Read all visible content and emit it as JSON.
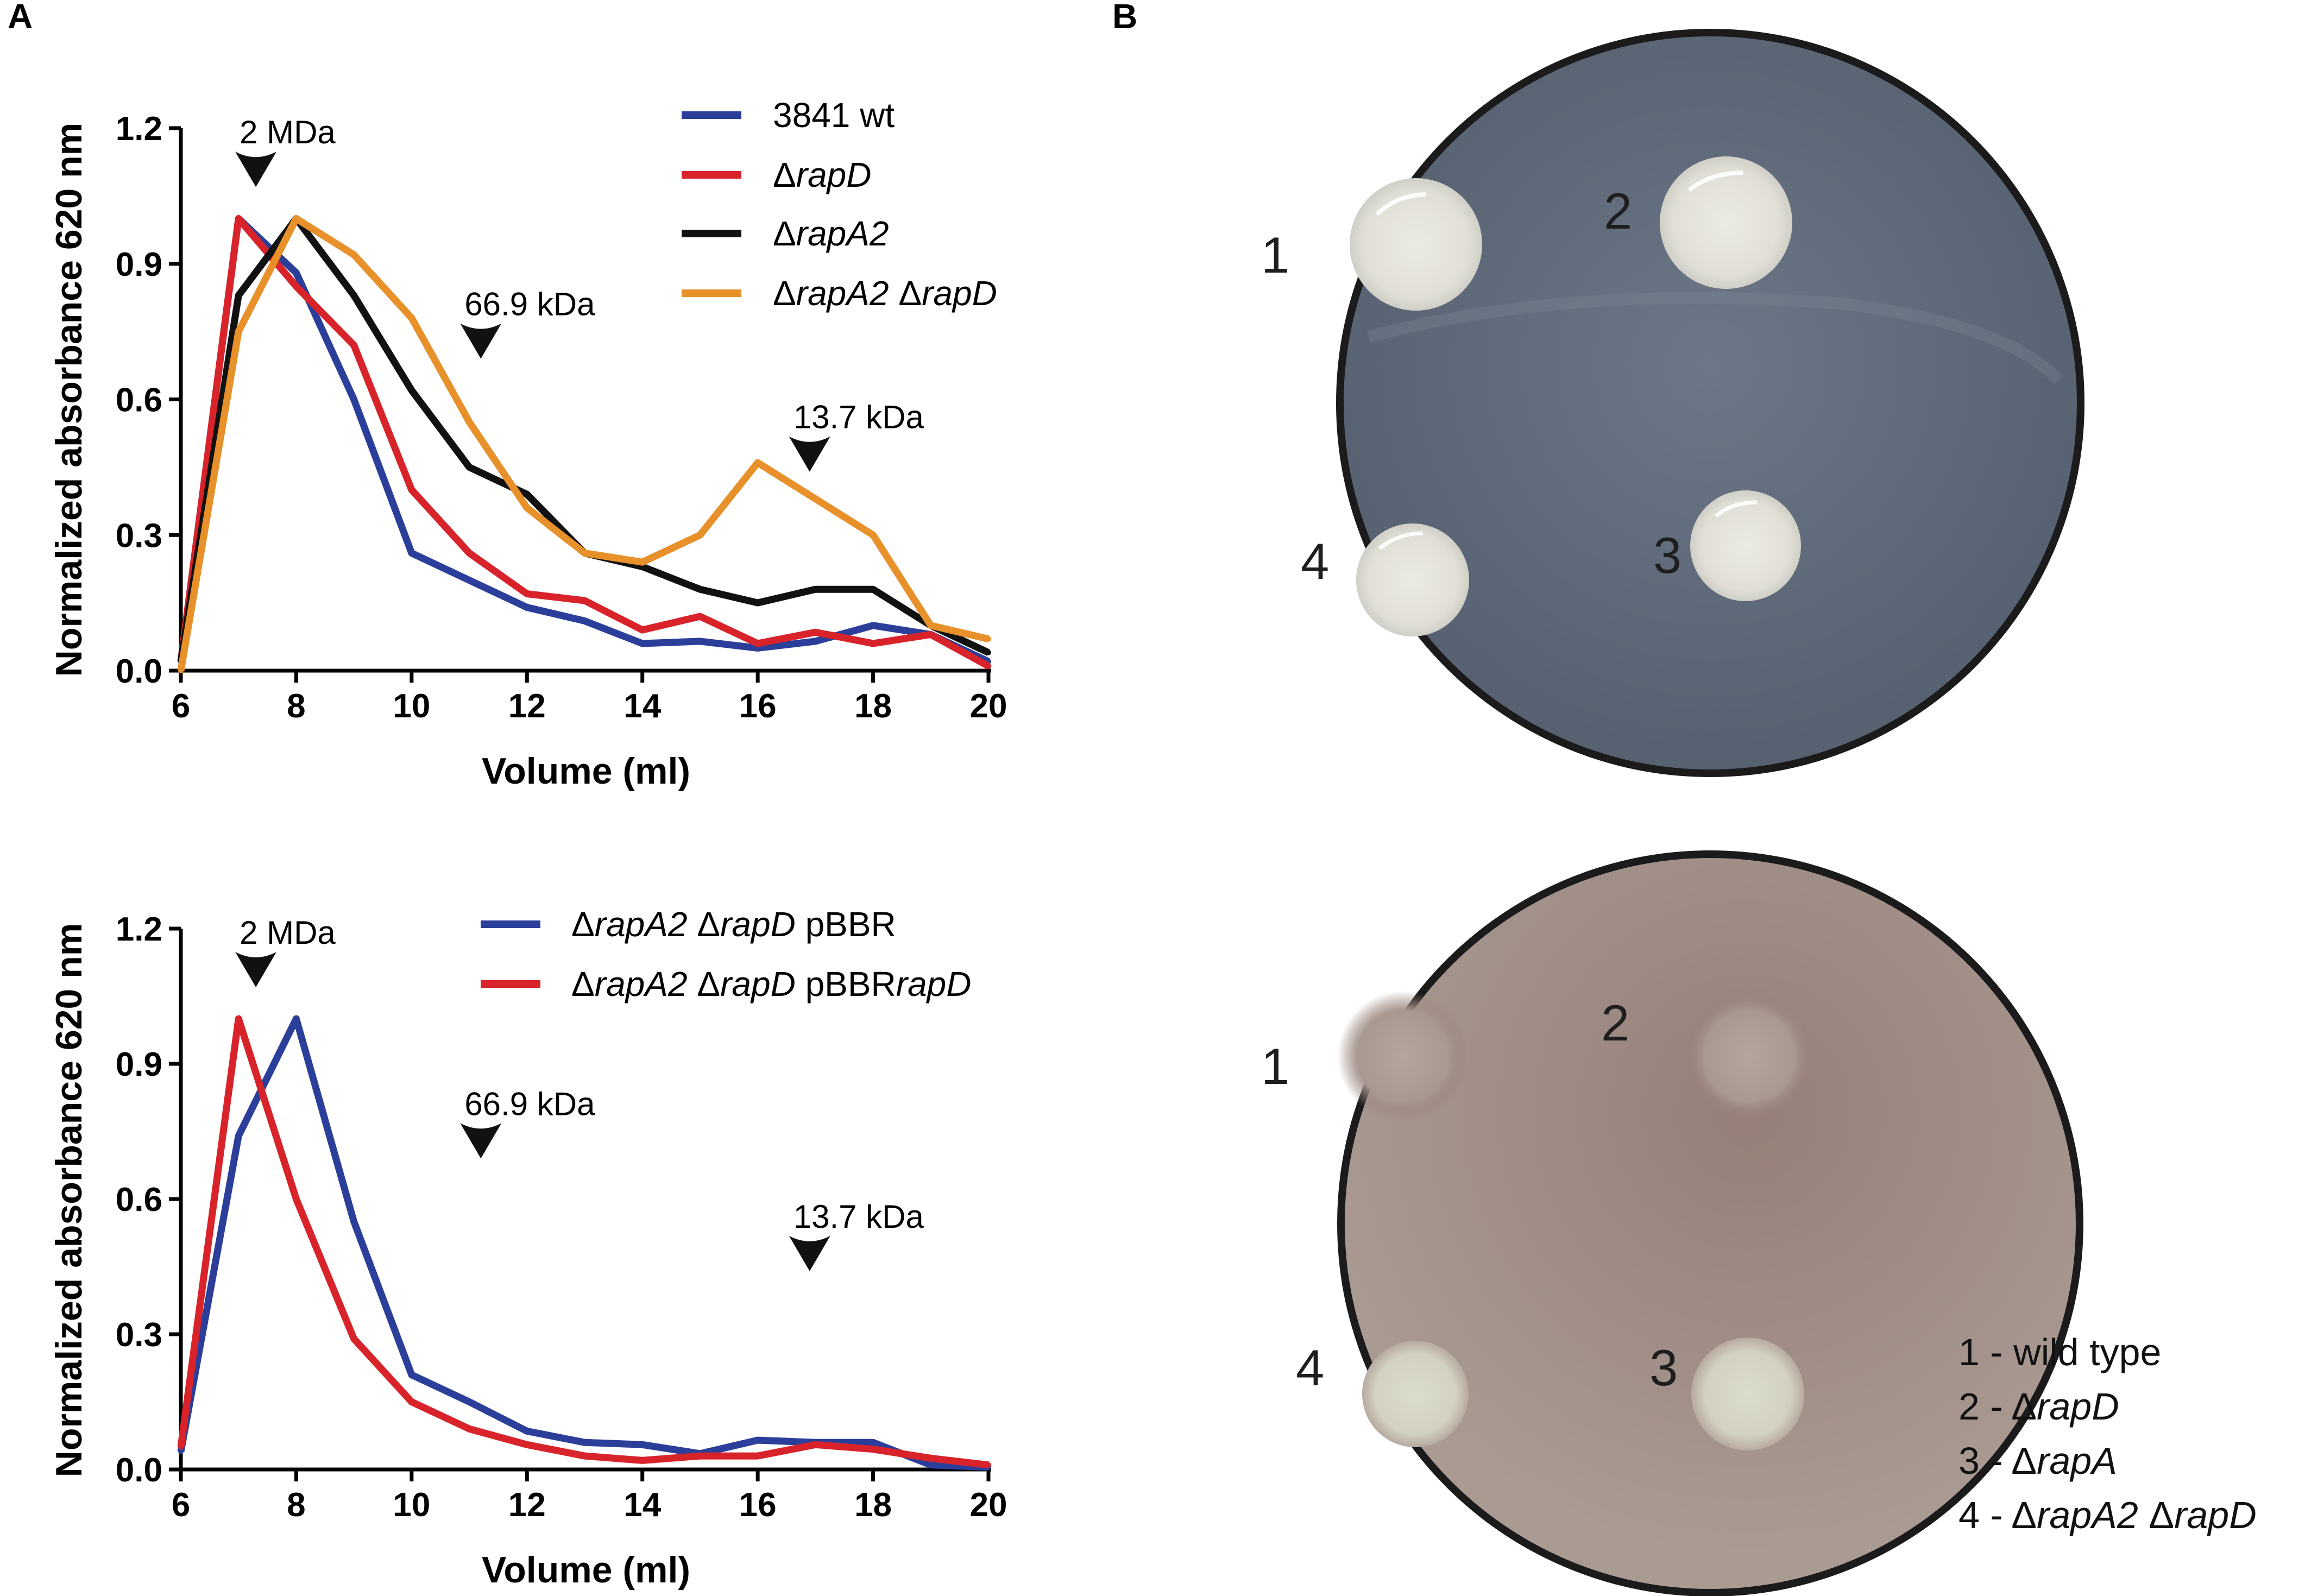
{
  "panel_labels": {
    "a": "A",
    "b": "B"
  },
  "chart_data": [
    {
      "type": "line",
      "xlabel": "Volume (ml)",
      "ylabel": "Normalized absorbance 620 nm",
      "xlim": [
        6,
        20
      ],
      "ylim": [
        0,
        1.2
      ],
      "xticks": [
        6,
        8,
        10,
        12,
        14,
        16,
        18,
        20
      ],
      "yticks": [
        0.0,
        0.3,
        0.6,
        0.9,
        1.2
      ],
      "ytick_labels": [
        "0.0",
        "0.3",
        "0.6",
        "0.9",
        "1.2"
      ],
      "grid": false,
      "legend_position": "top-right",
      "markers": [
        {
          "label": "2 MDa",
          "x": 7.3
        },
        {
          "label": "66.9 kDa",
          "x": 11.2
        },
        {
          "label": "13.7 kDa",
          "x": 16.9
        }
      ],
      "series": [
        {
          "name": "3841 wt",
          "color": "#2b3f9a",
          "x": [
            6,
            7,
            8,
            9,
            10,
            11,
            12,
            13,
            14,
            15,
            16,
            17,
            18,
            19,
            20
          ],
          "y": [
            0.02,
            1.0,
            0.88,
            0.6,
            0.26,
            0.2,
            0.14,
            0.11,
            0.06,
            0.065,
            0.05,
            0.065,
            0.1,
            0.08,
            0.02
          ]
        },
        {
          "name": "ΔrapD",
          "color": "#d8232a",
          "x": [
            6,
            7,
            8,
            9,
            10,
            11,
            12,
            13,
            14,
            15,
            16,
            17,
            18,
            19,
            20
          ],
          "y": [
            0.02,
            1.0,
            0.85,
            0.72,
            0.4,
            0.26,
            0.17,
            0.155,
            0.09,
            0.12,
            0.06,
            0.085,
            0.06,
            0.08,
            0.01
          ]
        },
        {
          "name": "ΔrapA2",
          "color": "#111111",
          "x": [
            6,
            7,
            8,
            9,
            10,
            11,
            12,
            13,
            14,
            15,
            16,
            17,
            18,
            19,
            20
          ],
          "y": [
            0.02,
            0.83,
            1.0,
            0.83,
            0.62,
            0.45,
            0.39,
            0.26,
            0.23,
            0.18,
            0.15,
            0.18,
            0.18,
            0.1,
            0.04
          ]
        },
        {
          "name": "ΔrapA2 ΔrapD",
          "color": "#e8902a",
          "x": [
            6,
            7,
            8,
            9,
            10,
            11,
            12,
            13,
            14,
            15,
            16,
            17,
            18,
            19,
            20
          ],
          "y": [
            0.0,
            0.75,
            1.0,
            0.92,
            0.78,
            0.55,
            0.36,
            0.26,
            0.24,
            0.3,
            0.46,
            0.38,
            0.3,
            0.1,
            0.07
          ]
        }
      ]
    },
    {
      "type": "line",
      "xlabel": "Volume (ml)",
      "ylabel": "Normalized absorbance 620 nm",
      "xlim": [
        6,
        20
      ],
      "ylim": [
        0,
        1.2
      ],
      "xticks": [
        6,
        8,
        10,
        12,
        14,
        16,
        18,
        20
      ],
      "yticks": [
        0.0,
        0.3,
        0.6,
        0.9,
        1.2
      ],
      "ytick_labels": [
        "0.0",
        "0.3",
        "0.6",
        "0.9",
        "1.2"
      ],
      "grid": false,
      "legend_position": "top-right",
      "markers": [
        {
          "label": "2 MDa",
          "x": 7.3
        },
        {
          "label": "66.9 kDa",
          "x": 11.2
        },
        {
          "label": "13.7 kDa",
          "x": 16.9
        }
      ],
      "series": [
        {
          "name": "ΔrapA2 ΔrapD pBBR",
          "color": "#2b3f9a",
          "x": [
            6,
            7,
            8,
            9,
            10,
            11,
            12,
            13,
            14,
            15,
            16,
            17,
            18,
            19,
            20
          ],
          "y": [
            0.04,
            0.74,
            1.0,
            0.55,
            0.21,
            0.15,
            0.085,
            0.06,
            0.055,
            0.035,
            0.065,
            0.06,
            0.06,
            0.01,
            0.005
          ]
        },
        {
          "name": "ΔrapA2 ΔrapD pBBRrapD",
          "color": "#d8232a",
          "x": [
            6,
            7,
            8,
            9,
            10,
            11,
            12,
            13,
            14,
            15,
            16,
            17,
            18,
            19,
            20
          ],
          "y": [
            0.05,
            1.0,
            0.6,
            0.29,
            0.15,
            0.09,
            0.055,
            0.03,
            0.02,
            0.03,
            0.03,
            0.055,
            0.045,
            0.025,
            0.01
          ]
        }
      ]
    }
  ],
  "legend_rich": [
    [
      [
        {
          "t": "3841 wt",
          "i": false
        }
      ],
      [
        {
          "t": "Δ",
          "i": false
        },
        {
          "t": "rapD",
          "i": true
        }
      ],
      [
        {
          "t": "Δ",
          "i": false
        },
        {
          "t": "rapA2",
          "i": true
        }
      ],
      [
        {
          "t": "Δ",
          "i": false
        },
        {
          "t": "rapA2",
          "i": true
        },
        {
          "t": " Δ",
          "i": false
        },
        {
          "t": "rapD",
          "i": true
        }
      ]
    ],
    [
      [
        {
          "t": "Δ",
          "i": false
        },
        {
          "t": "rapA2",
          "i": true
        },
        {
          "t": " Δ",
          "i": false
        },
        {
          "t": "rapD",
          "i": true
        },
        {
          "t": " pBBR",
          "i": false
        }
      ],
      [
        {
          "t": "Δ",
          "i": false
        },
        {
          "t": "rapA2",
          "i": true
        },
        {
          "t": " Δ",
          "i": false
        },
        {
          "t": "rapD",
          "i": true
        },
        {
          "t": " pBBR",
          "i": false
        },
        {
          "t": "rapD",
          "i": true
        }
      ]
    ]
  ],
  "plates": {
    "top": {
      "background": "#5e6a78",
      "spot_color": "#e4e2d8",
      "labels": [
        "1",
        "2",
        "3",
        "4"
      ]
    },
    "bottom": {
      "background": "#8e7770",
      "spot_color": "#d6d6c6",
      "labels": [
        "1",
        "2",
        "3",
        "4"
      ]
    }
  },
  "key": [
    [
      {
        "t": "1 - wild type",
        "i": false
      }
    ],
    [
      {
        "t": "2 - Δ",
        "i": false
      },
      {
        "t": "rapD",
        "i": true
      }
    ],
    [
      {
        "t": "3 - Δ",
        "i": false
      },
      {
        "t": "rapA",
        "i": true
      }
    ],
    [
      {
        "t": "4 - Δ",
        "i": false
      },
      {
        "t": "rapA2",
        "i": true
      },
      {
        "t": " Δ",
        "i": false
      },
      {
        "t": "rapD",
        "i": true
      }
    ]
  ]
}
